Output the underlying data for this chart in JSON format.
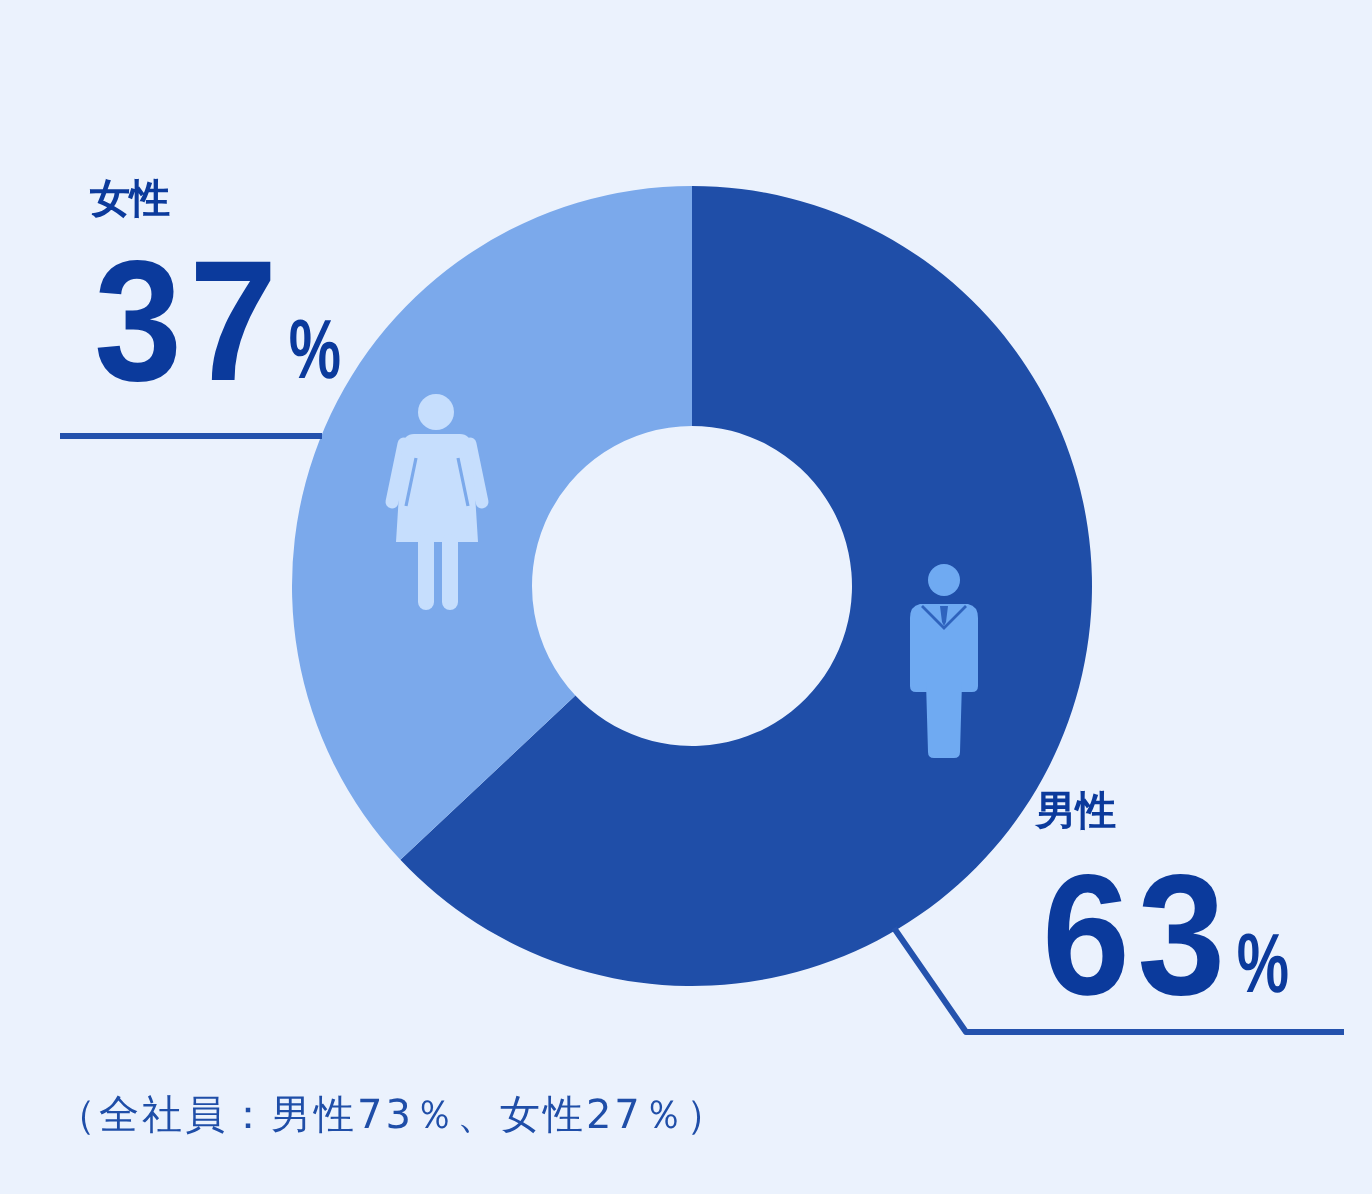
{
  "chart_data": {
    "type": "donut",
    "categories": [
      "男性",
      "女性"
    ],
    "values": [
      63,
      37
    ],
    "colors": [
      "#1f4ea8",
      "#7ba9eb"
    ],
    "value_labels": [
      "63%",
      "37%"
    ],
    "annotations": [
      "（全社員：男性73％、女性27％）"
    ]
  }
}
